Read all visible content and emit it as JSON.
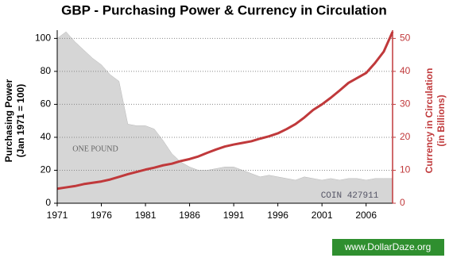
{
  "chart_data": {
    "type": "area_line",
    "title": "GBP - Purchasing Power & Currency in Circulation",
    "y_label": [
      "Purchasing Power",
      "(Jan 1971 = 100)"
    ],
    "y2_label": [
      "Currency in Circulation",
      "(in Billions)"
    ],
    "annotations": [
      "ONE POUND",
      "COIN 427911"
    ],
    "watermark": "www.DollarDaze.org",
    "x": [
      1971,
      1972,
      1973,
      1974,
      1975,
      1976,
      1977,
      1978,
      1979,
      1980,
      1981,
      1982,
      1983,
      1984,
      1985,
      1986,
      1987,
      1988,
      1989,
      1990,
      1991,
      1992,
      1993,
      1994,
      1995,
      1996,
      1997,
      1998,
      1999,
      2000,
      2001,
      2002,
      2003,
      2004,
      2005,
      2006,
      2007,
      2008,
      2009
    ],
    "series": [
      {
        "type": "area",
        "color": "#cfcfcf",
        "values": [
          100,
          104,
          98,
          93,
          88,
          84,
          78,
          74,
          48,
          47,
          47,
          45,
          38,
          30,
          25,
          22,
          20,
          20,
          21,
          22,
          22,
          20,
          18,
          16,
          17,
          16,
          15,
          14,
          16,
          15,
          14,
          15,
          14,
          15,
          15,
          14,
          15,
          15,
          15
        ]
      },
      {
        "type": "line",
        "axis": "y2",
        "color": "#c0393b",
        "values": [
          4.4,
          4.8,
          5.2,
          5.8,
          6.2,
          6.6,
          7.2,
          8,
          8.8,
          9.5,
          10.2,
          10.8,
          11.5,
          12,
          12.8,
          13.4,
          14.2,
          15.3,
          16.3,
          17.2,
          17.8,
          18.3,
          18.8,
          19.6,
          20.3,
          21.2,
          22.5,
          24,
          26,
          28.3,
          30,
          32,
          34.2,
          36.5,
          38,
          39.5,
          42.5,
          46,
          52
        ]
      }
    ],
    "xlim": [
      1971,
      2009
    ],
    "xticks": [
      1971,
      1976,
      1981,
      1986,
      1991,
      1996,
      2001,
      2006
    ],
    "ylim": [
      0,
      105
    ],
    "yticks": [
      0,
      20,
      40,
      60,
      80,
      100
    ],
    "y2lim": [
      0,
      52.5
    ],
    "y2ticks": [
      0,
      10,
      20,
      30,
      40,
      50
    ],
    "grid": true
  }
}
